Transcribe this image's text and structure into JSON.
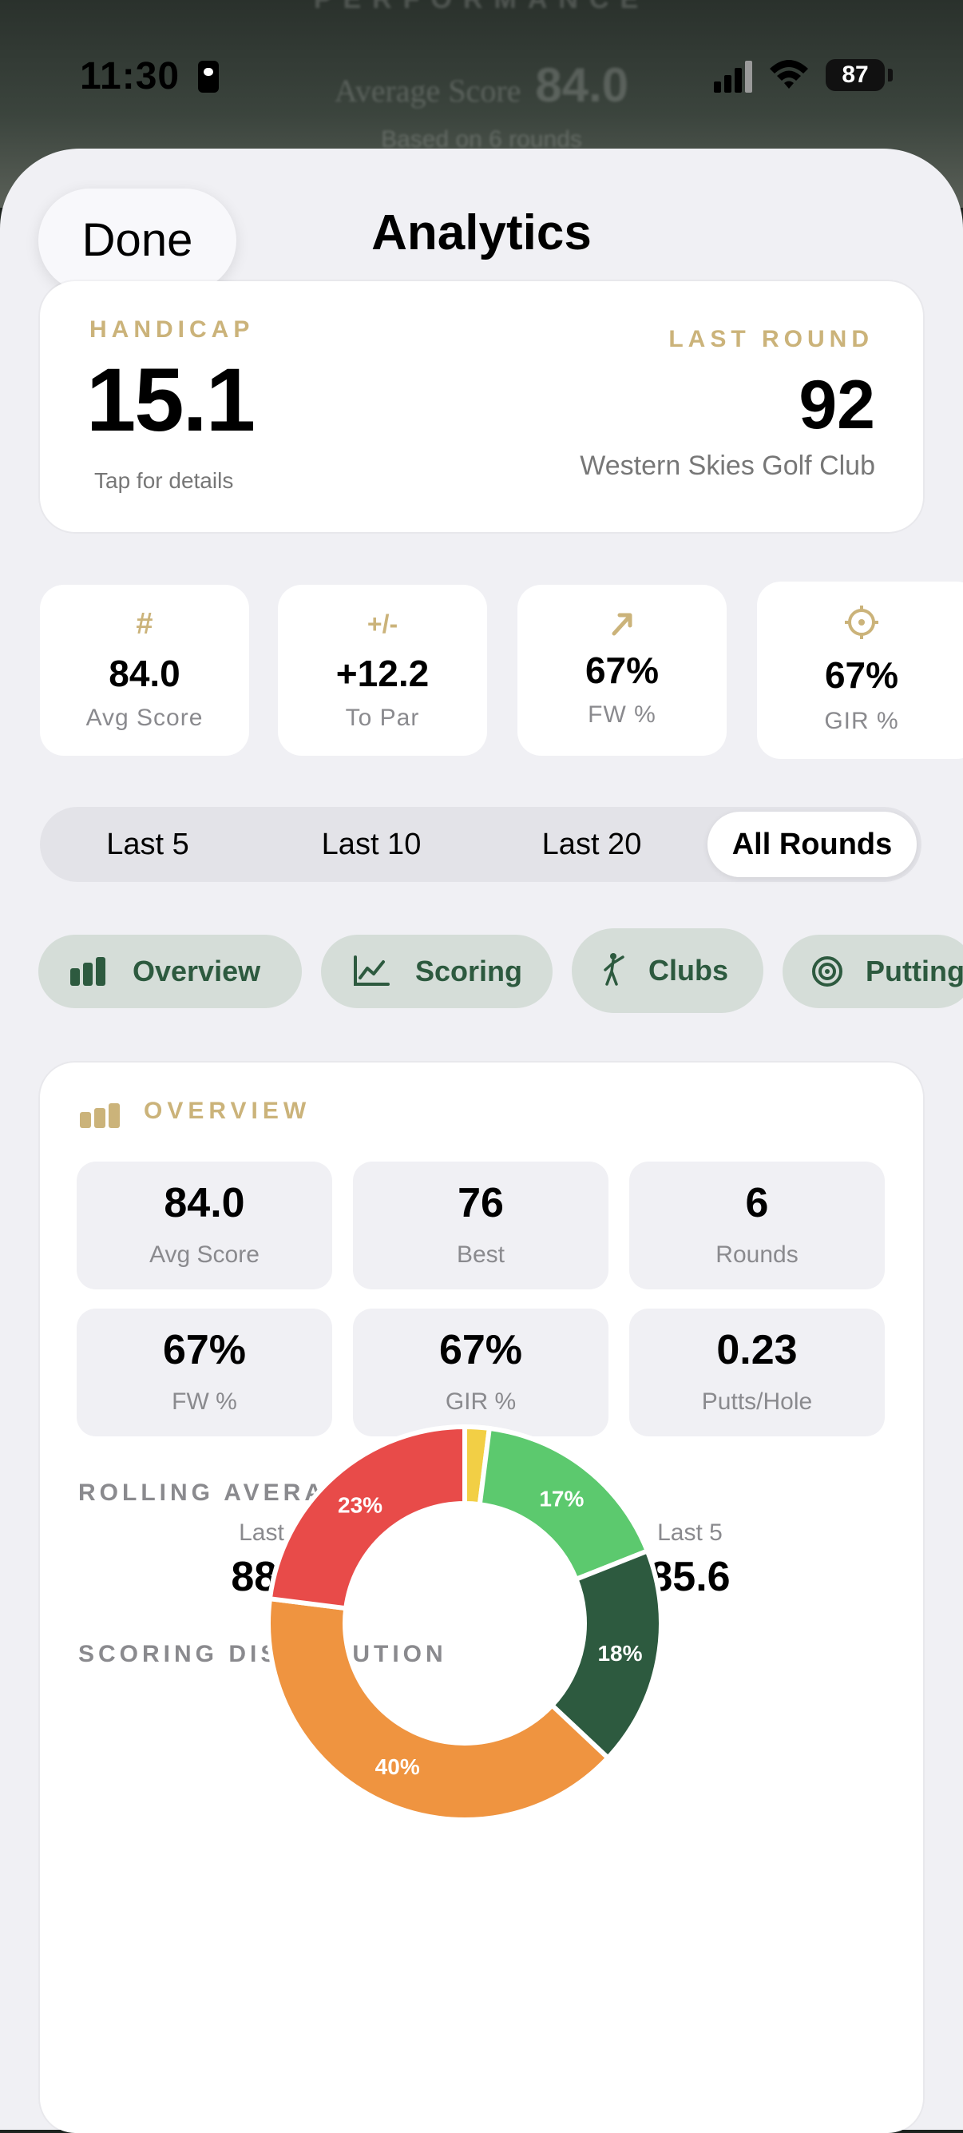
{
  "background": {
    "heading": "PERFORMANCE",
    "average_label": "Average Score",
    "average_value": "84.0",
    "based_on": "Based on 6 rounds"
  },
  "status_bar": {
    "time": "11:30",
    "battery": "87"
  },
  "nav": {
    "done_label": "Done",
    "title": "Analytics"
  },
  "hero": {
    "handicap_label": "HANDICAP",
    "handicap_value": "15.1",
    "handicap_hint": "Tap for details",
    "last_round_label": "LAST ROUND",
    "last_round_value": "92",
    "last_round_course": "Western Skies Golf Club"
  },
  "stat_cards": [
    {
      "icon": "#",
      "value": "84.0",
      "label": "Avg Score"
    },
    {
      "icon": "+/-",
      "value": "+12.2",
      "label": "To Par"
    },
    {
      "icon": "arrow-up-right-icon",
      "value": "67%",
      "label": "FW %"
    },
    {
      "icon": "crosshair-icon",
      "value": "67%",
      "label": "GIR %"
    }
  ],
  "round_filter": {
    "options": [
      "Last 5",
      "Last 10",
      "Last 20",
      "All Rounds"
    ],
    "selected": "All Rounds"
  },
  "tabs": [
    {
      "label": "Overview",
      "icon": "bar-chart-icon"
    },
    {
      "label": "Scoring",
      "icon": "line-chart-icon"
    },
    {
      "label": "Clubs",
      "icon": "golfer-icon"
    },
    {
      "label": "Putting",
      "icon": "target-icon"
    }
  ],
  "overview": {
    "heading": "OVERVIEW",
    "tiles": [
      {
        "value": "84.0",
        "label": "Avg Score"
      },
      {
        "value": "76",
        "label": "Best"
      },
      {
        "value": "6",
        "label": "Rounds"
      },
      {
        "value": "67%",
        "label": "FW %"
      },
      {
        "value": "67%",
        "label": "GIR %"
      },
      {
        "value": "0.23",
        "label": "Putts/Hole"
      }
    ],
    "rolling_heading": "ROLLING AVERAGES",
    "rolling": [
      {
        "label": "Last 3",
        "value": "88.3"
      },
      {
        "label": "Last 5",
        "value": "85.6"
      }
    ],
    "distribution_heading": "SCORING DISTRIBUTION"
  },
  "colors": {
    "accent_gold": "#cbb37a",
    "tab_green": "#2d5a3f",
    "tab_bg": "#d5ddd8"
  },
  "chart_data": {
    "type": "pie",
    "title": "SCORING DISTRIBUTION",
    "slices": [
      {
        "value": 2,
        "color": "#f2cf45",
        "label": ""
      },
      {
        "value": 17,
        "color": "#5cc96e",
        "label": "17%"
      },
      {
        "value": 18,
        "color": "#2d5a3f",
        "label": "18%"
      },
      {
        "value": 40,
        "color": "#ef9440",
        "label": "40%"
      },
      {
        "value": 23,
        "color": "#e84b49",
        "label": "23%"
      }
    ],
    "donut": true
  }
}
